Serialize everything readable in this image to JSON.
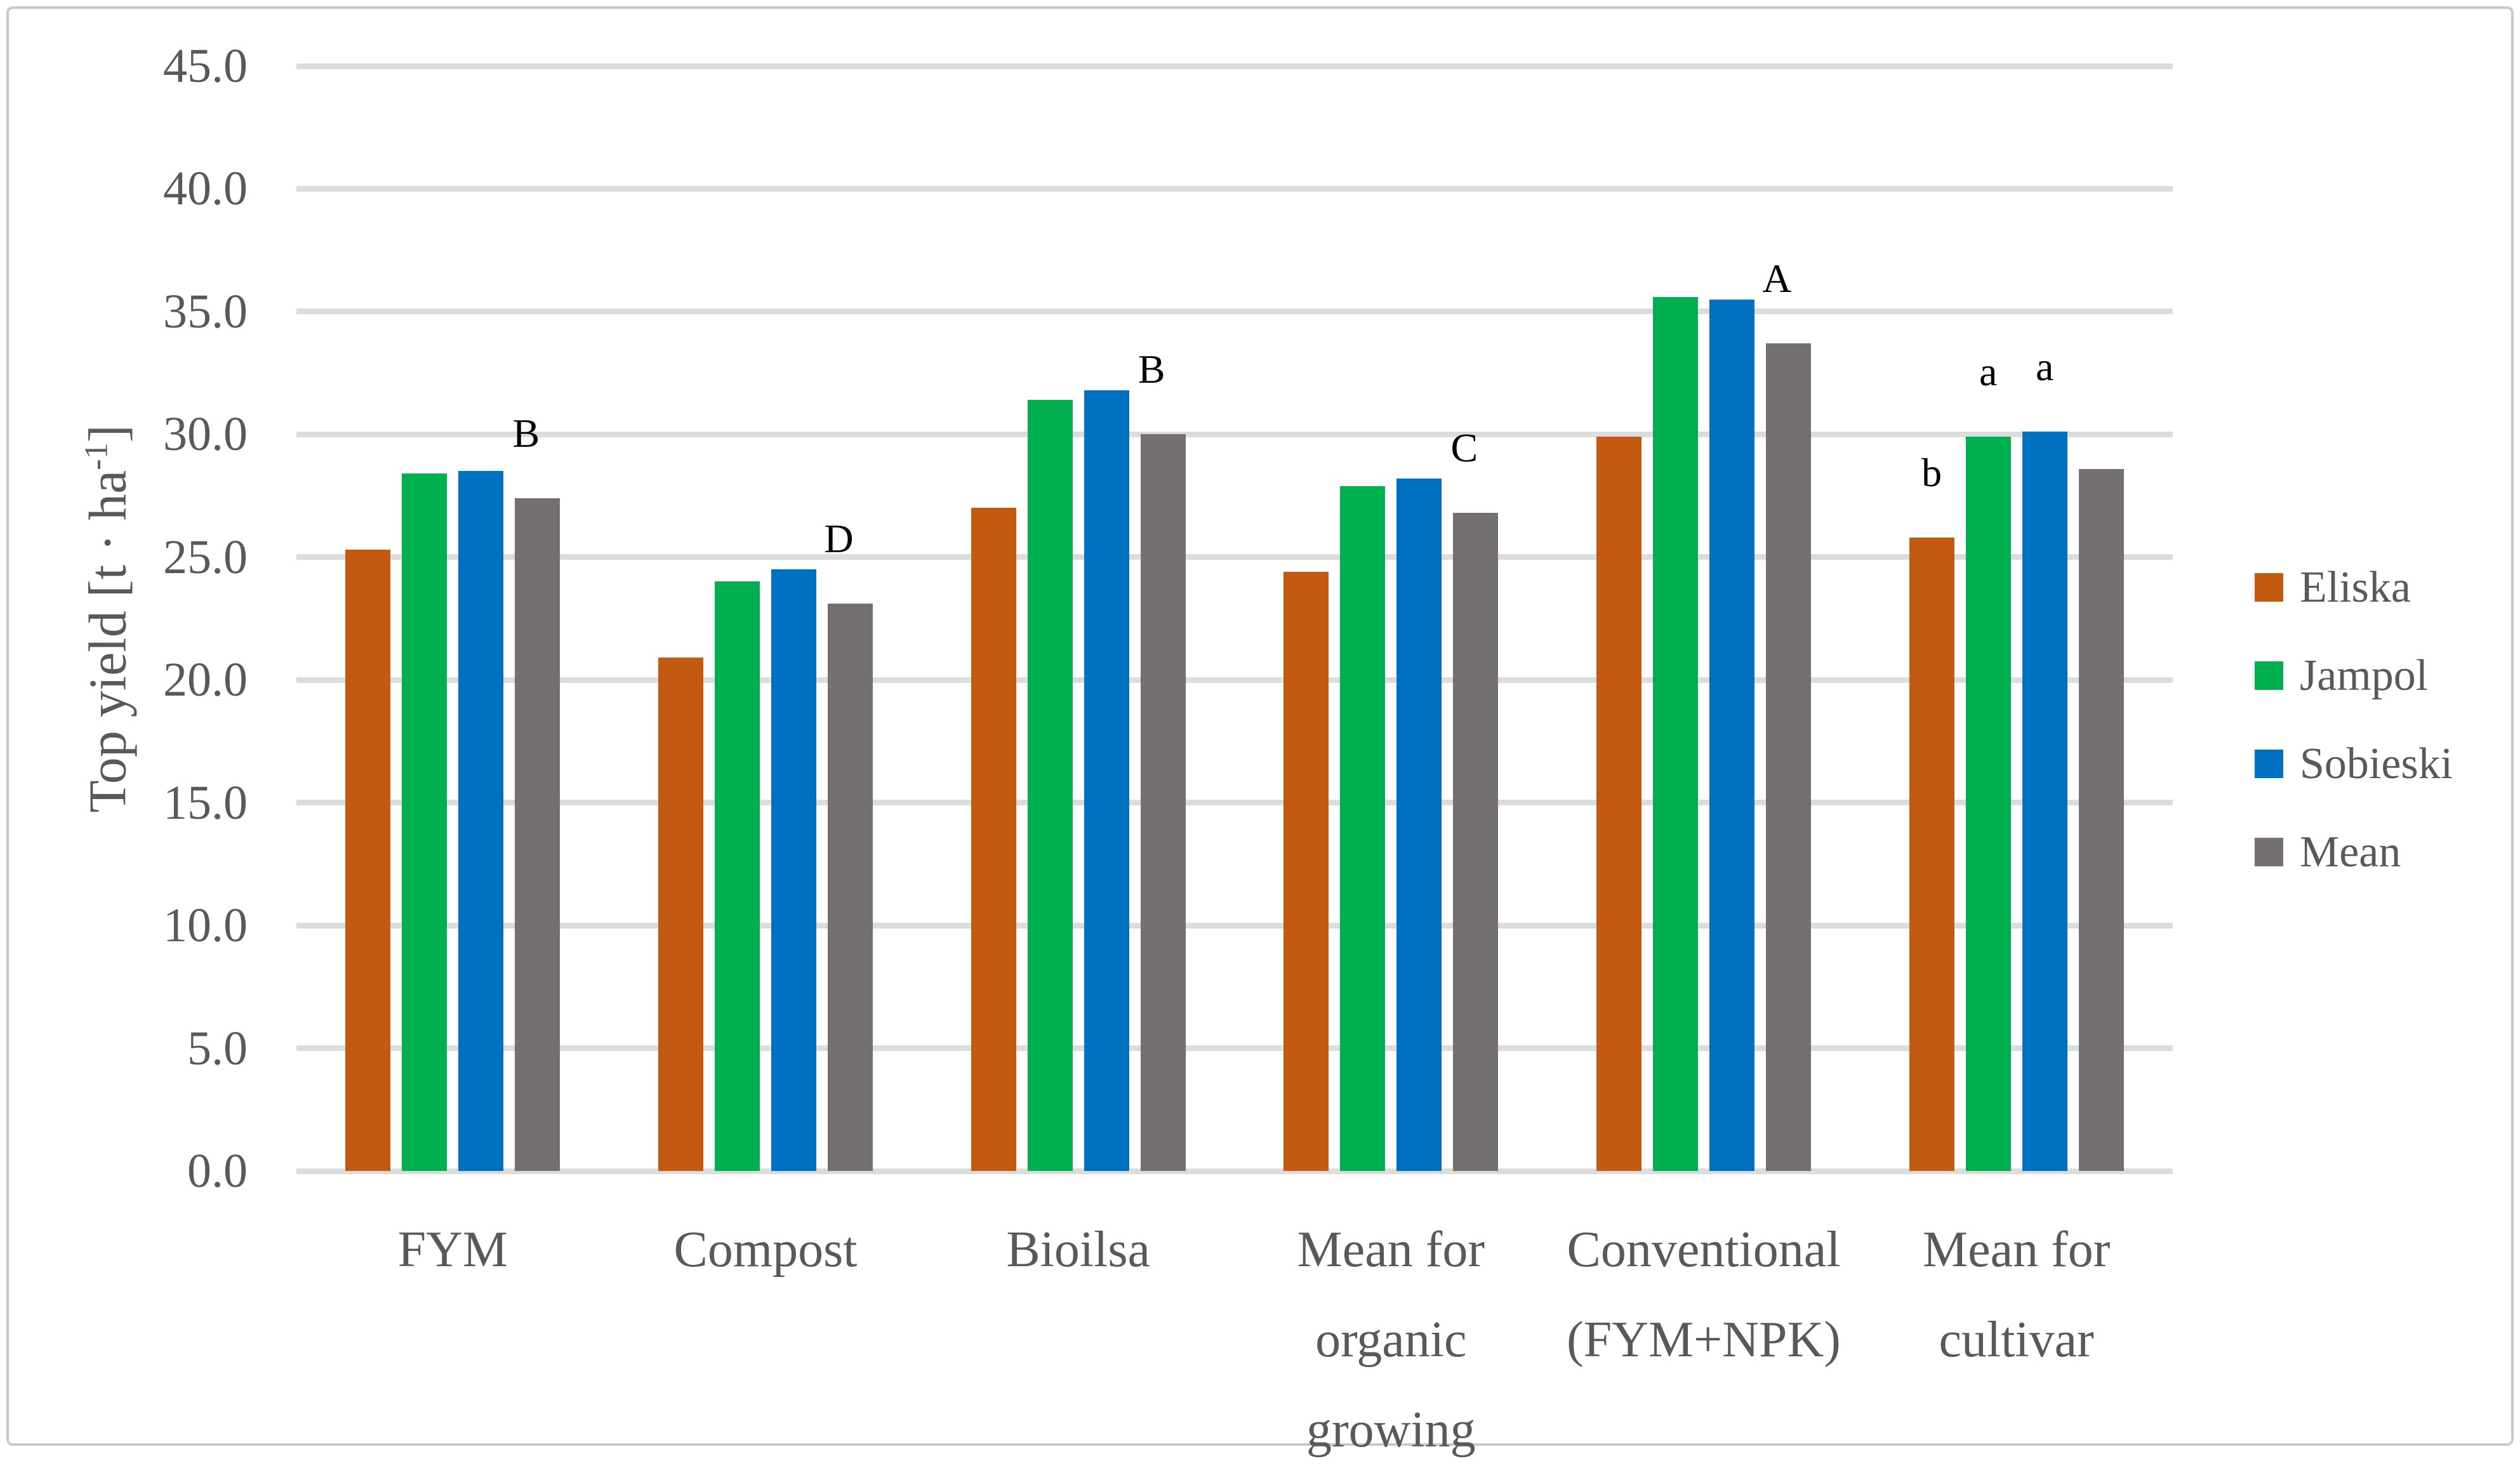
{
  "chart_data": {
    "type": "bar",
    "title": "",
    "ylabel": {
      "base": "Top yield [t · ha",
      "sup": "-1",
      "end": "]"
    },
    "xlabel": "",
    "ylim": [
      0,
      45
    ],
    "ytick_step": 5,
    "ytick_labels": [
      "0.0",
      "5.0",
      "10.0",
      "15.0",
      "20.0",
      "25.0",
      "30.0",
      "35.0",
      "40.0",
      "45.0"
    ],
    "grid": "horizontal",
    "legend_position": "right",
    "categories": [
      "FYM",
      "Compost",
      "Bioilsa",
      "Mean for organic growing",
      "Conventional (FYM+NPK)",
      "Mean for cultivar"
    ],
    "category_label_lines": [
      [
        "FYM"
      ],
      [
        "Compost"
      ],
      [
        "Bioilsa"
      ],
      [
        "Mean for",
        "organic",
        "growing"
      ],
      [
        "Conventional",
        "(FYM+NPK)"
      ],
      [
        "Mean for",
        "cultivar"
      ]
    ],
    "series": [
      {
        "name": "Eliska",
        "color": "#C45911",
        "values": [
          25.3,
          20.9,
          27.0,
          24.4,
          29.9,
          25.8
        ]
      },
      {
        "name": "Jampol",
        "color": "#00B050",
        "values": [
          28.4,
          24.0,
          31.4,
          27.9,
          35.6,
          29.9
        ]
      },
      {
        "name": "Sobieski",
        "color": "#0070C0",
        "values": [
          28.5,
          24.5,
          31.8,
          28.2,
          35.5,
          30.1
        ]
      },
      {
        "name": "Mean",
        "color": "#757070",
        "values": [
          27.4,
          23.1,
          30.0,
          26.8,
          33.7,
          28.6
        ]
      }
    ],
    "annotations": [
      {
        "category_index": 0,
        "series_index": 3,
        "label": "B",
        "dx": -18
      },
      {
        "category_index": 1,
        "series_index": 3,
        "label": "D",
        "dx": -18
      },
      {
        "category_index": 2,
        "series_index": 3,
        "label": "B",
        "dx": -18
      },
      {
        "category_index": 3,
        "series_index": 3,
        "label": "C",
        "dx": -18
      },
      {
        "category_index": 4,
        "series_index": 3,
        "label": "A",
        "dx": -18
      },
      {
        "category_index": 5,
        "series_index": 0,
        "label": "b",
        "dx": 0
      },
      {
        "category_index": 5,
        "series_index": 1,
        "label": "a",
        "dx": 0
      },
      {
        "category_index": 5,
        "series_index": 2,
        "label": "a",
        "dx": 0
      }
    ],
    "colors": {
      "axis_text": "#595959",
      "gridline": "#dcdcdc",
      "annotation_text": "#000000",
      "frame_border": "#c9c9c9"
    }
  }
}
